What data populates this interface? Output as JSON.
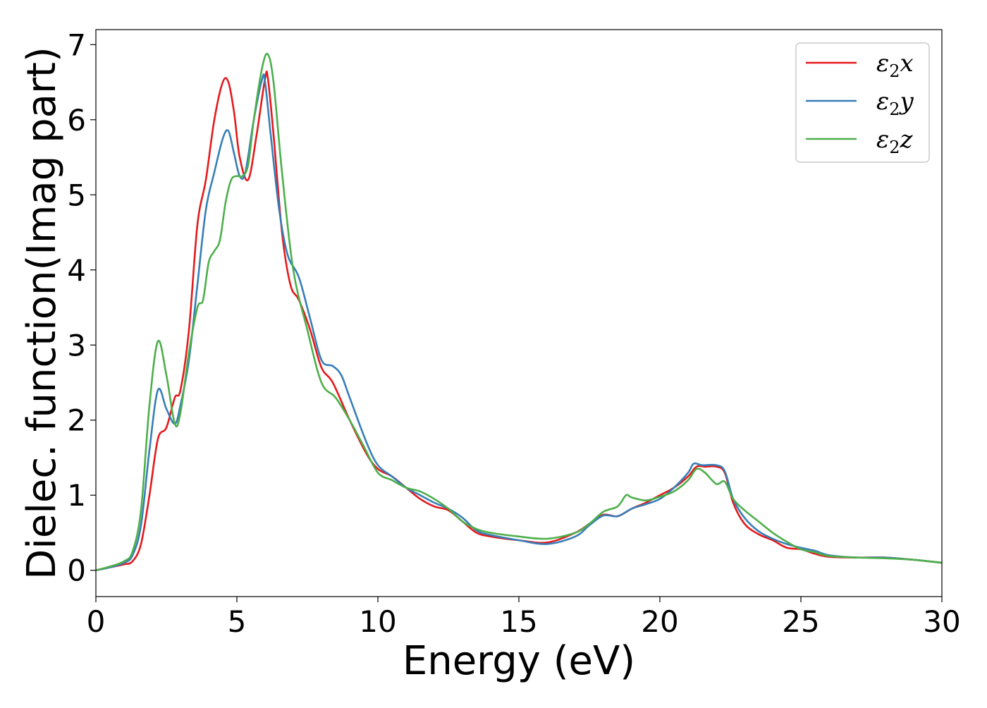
{
  "chart_data": {
    "type": "line",
    "xlabel": "Energy (eV)",
    "ylabel": "Dielec. function(Imag part)",
    "xlim": [
      0,
      30
    ],
    "ylim": [
      -0.35,
      7.2
    ],
    "xticks": [
      0,
      5,
      10,
      15,
      20,
      25,
      30
    ],
    "yticks": [
      0,
      1,
      2,
      3,
      4,
      5,
      6,
      7
    ],
    "grid": false,
    "legend_position": "top-right",
    "series": [
      {
        "name": "ε2x",
        "color": "#e41a1c",
        "x": [
          0,
          0.5,
          1.0,
          1.3,
          1.6,
          1.9,
          2.2,
          2.5,
          2.8,
          3.0,
          3.3,
          3.6,
          3.9,
          4.2,
          4.5,
          4.7,
          4.9,
          5.1,
          5.4,
          5.7,
          6.0,
          6.1,
          6.3,
          6.6,
          6.9,
          7.2,
          7.6,
          8.0,
          8.4,
          9.0,
          9.6,
          10.0,
          10.5,
          11.0,
          11.5,
          12.0,
          12.5,
          13.0,
          13.5,
          14.0,
          15.0,
          16.0,
          17.0,
          17.5,
          18.0,
          18.5,
          19.0,
          19.5,
          20.0,
          20.5,
          21.0,
          21.3,
          21.6,
          22.0,
          22.3,
          22.6,
          23.0,
          23.5,
          24.0,
          24.5,
          25.0,
          25.5,
          26.0,
          27.0,
          28.0,
          29.0,
          30.0
        ],
        "values": [
          0.0,
          0.04,
          0.08,
          0.12,
          0.35,
          1.0,
          1.75,
          1.9,
          2.3,
          2.4,
          3.2,
          4.6,
          5.2,
          6.0,
          6.5,
          6.5,
          6.1,
          5.5,
          5.2,
          5.8,
          6.55,
          6.55,
          5.8,
          4.5,
          3.8,
          3.6,
          3.2,
          2.7,
          2.5,
          2.0,
          1.55,
          1.35,
          1.25,
          1.1,
          0.95,
          0.85,
          0.8,
          0.65,
          0.5,
          0.45,
          0.4,
          0.37,
          0.5,
          0.62,
          0.74,
          0.72,
          0.82,
          0.9,
          1.0,
          1.1,
          1.25,
          1.38,
          1.38,
          1.38,
          1.3,
          0.9,
          0.62,
          0.48,
          0.4,
          0.3,
          0.28,
          0.22,
          0.18,
          0.17,
          0.17,
          0.14,
          0.1
        ]
      },
      {
        "name": "ε2y",
        "color": "#377eb8",
        "x": [
          0,
          0.5,
          1.0,
          1.3,
          1.6,
          1.9,
          2.2,
          2.5,
          2.8,
          3.0,
          3.3,
          3.6,
          3.9,
          4.2,
          4.5,
          4.7,
          4.9,
          5.1,
          5.3,
          5.6,
          5.9,
          6.0,
          6.2,
          6.5,
          6.8,
          7.2,
          7.6,
          8.0,
          8.4,
          8.7,
          9.0,
          9.6,
          10.0,
          10.5,
          11.0,
          11.5,
          12.0,
          12.5,
          13.0,
          13.5,
          14.0,
          15.0,
          16.0,
          17.0,
          17.5,
          18.0,
          18.5,
          19.0,
          19.5,
          20.0,
          20.5,
          21.0,
          21.2,
          21.5,
          22.0,
          22.3,
          22.6,
          23.0,
          23.5,
          24.0,
          24.5,
          25.0,
          25.5,
          26.0,
          27.0,
          28.0,
          29.0,
          30.0
        ],
        "values": [
          0.0,
          0.04,
          0.1,
          0.2,
          0.6,
          1.6,
          2.4,
          2.15,
          1.95,
          2.2,
          2.8,
          3.8,
          4.8,
          5.3,
          5.75,
          5.85,
          5.55,
          5.25,
          5.3,
          6.0,
          6.55,
          6.5,
          5.8,
          4.8,
          4.2,
          3.9,
          3.35,
          2.8,
          2.72,
          2.6,
          2.3,
          1.7,
          1.4,
          1.25,
          1.1,
          1.0,
          0.9,
          0.82,
          0.7,
          0.53,
          0.47,
          0.4,
          0.35,
          0.45,
          0.6,
          0.73,
          0.72,
          0.82,
          0.88,
          0.95,
          1.1,
          1.3,
          1.42,
          1.4,
          1.4,
          1.32,
          0.95,
          0.7,
          0.52,
          0.42,
          0.35,
          0.3,
          0.26,
          0.2,
          0.17,
          0.17,
          0.14,
          0.1
        ]
      },
      {
        "name": "ε2z",
        "color": "#4daf4a",
        "x": [
          0,
          0.5,
          1.0,
          1.3,
          1.6,
          1.9,
          2.2,
          2.5,
          2.8,
          3.0,
          3.3,
          3.6,
          3.8,
          4.0,
          4.2,
          4.4,
          4.6,
          4.8,
          5.0,
          5.2,
          5.4,
          5.6,
          5.9,
          6.1,
          6.3,
          6.6,
          7.0,
          7.5,
          8.0,
          8.5,
          9.0,
          9.5,
          10.0,
          10.5,
          11.0,
          11.5,
          12.0,
          12.5,
          13.0,
          13.5,
          14.0,
          15.0,
          16.0,
          17.0,
          17.5,
          18.0,
          18.5,
          18.8,
          19.0,
          19.5,
          20.0,
          20.5,
          21.0,
          21.3,
          21.6,
          22.0,
          22.3,
          22.6,
          23.0,
          23.5,
          24.0,
          24.5,
          25.0,
          25.5,
          26.0,
          27.0,
          28.0,
          29.0,
          30.0
        ],
        "values": [
          0.0,
          0.05,
          0.12,
          0.25,
          0.8,
          2.2,
          3.05,
          2.6,
          1.95,
          2.1,
          2.9,
          3.5,
          3.6,
          4.1,
          4.25,
          4.4,
          4.9,
          5.2,
          5.25,
          5.25,
          5.4,
          6.0,
          6.7,
          6.87,
          6.5,
          5.3,
          4.0,
          3.2,
          2.5,
          2.3,
          2.0,
          1.65,
          1.3,
          1.2,
          1.1,
          1.05,
          0.95,
          0.82,
          0.65,
          0.55,
          0.5,
          0.45,
          0.42,
          0.5,
          0.62,
          0.78,
          0.85,
          1.0,
          0.97,
          0.93,
          0.98,
          1.05,
          1.2,
          1.35,
          1.3,
          1.15,
          1.18,
          0.95,
          0.8,
          0.65,
          0.5,
          0.38,
          0.28,
          0.24,
          0.19,
          0.17,
          0.16,
          0.14,
          0.1
        ]
      }
    ]
  }
}
